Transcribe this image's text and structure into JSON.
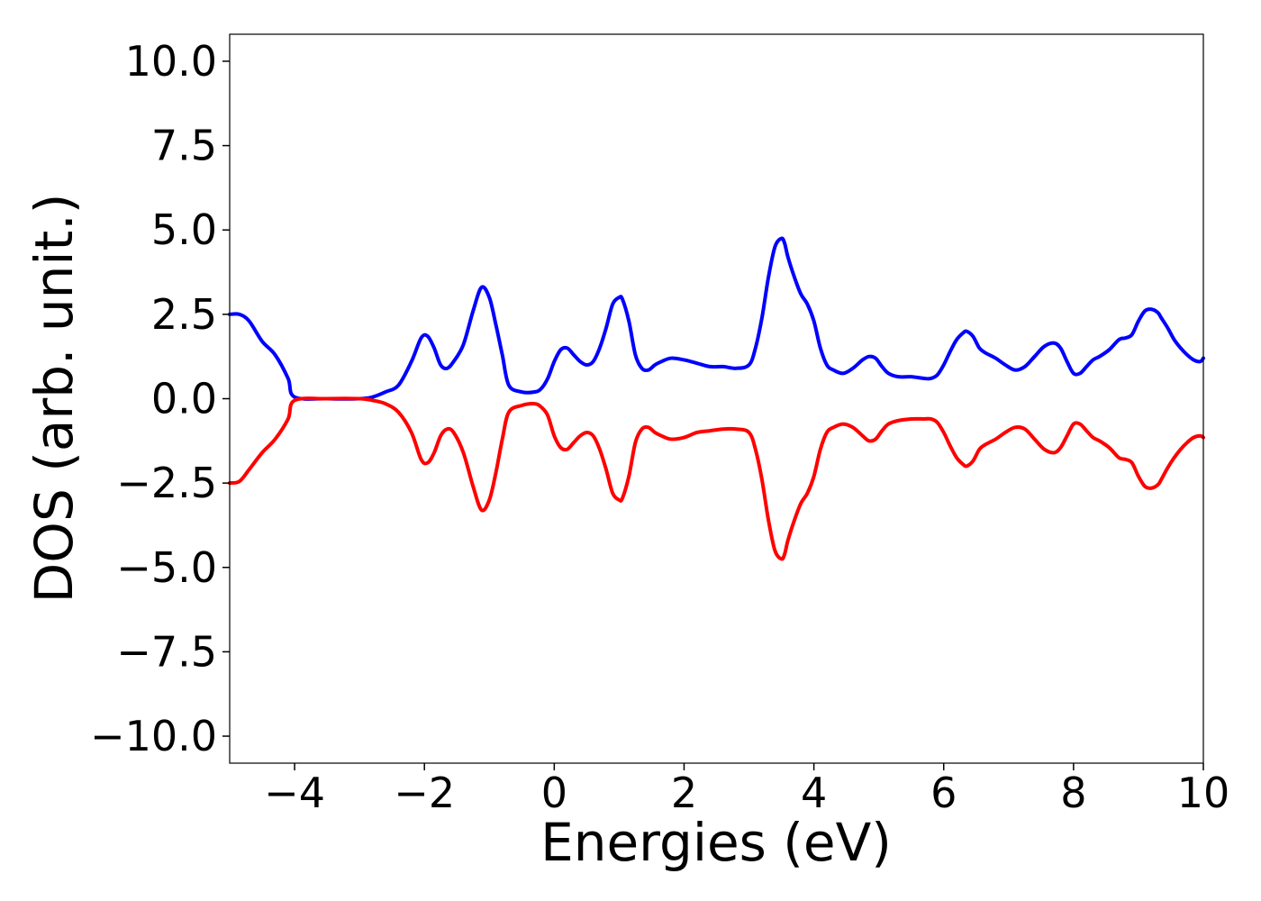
{
  "chart_data": {
    "type": "line",
    "title": "",
    "xlabel": "Energies (eV)",
    "ylabel": "DOS (arb. unit.)",
    "xlim": [
      -5,
      10
    ],
    "ylim": [
      -10.8,
      10.8
    ],
    "grid": false,
    "legend": "none",
    "xticks": [
      -4,
      -2,
      0,
      2,
      4,
      6,
      8,
      10
    ],
    "xtick_labels": [
      "−4",
      "−2",
      "0",
      "2",
      "4",
      "6",
      "8",
      "10"
    ],
    "yticks": [
      10,
      7.5,
      5,
      2.5,
      0,
      -2.5,
      -5,
      -7.5,
      -10
    ],
    "ytick_labels": [
      "10.0",
      "7.5",
      "5.0",
      "2.5",
      "0.0",
      "−2.5",
      "−5.0",
      "−7.5",
      "−10.0"
    ],
    "series": [
      {
        "color": "#0000ff",
        "x": [
          -5.0,
          -4.85,
          -4.7,
          -4.5,
          -4.3,
          -4.1,
          -4.0,
          -3.5,
          -3.0,
          -2.8,
          -2.6,
          -2.4,
          -2.2,
          -2.05,
          -1.95,
          -1.85,
          -1.75,
          -1.65,
          -1.55,
          -1.4,
          -1.25,
          -1.12,
          -1.0,
          -0.9,
          -0.8,
          -0.7,
          -0.5,
          -0.3,
          -0.2,
          -0.1,
          0.0,
          0.1,
          0.2,
          0.3,
          0.4,
          0.5,
          0.6,
          0.7,
          0.8,
          0.9,
          1.0,
          1.05,
          1.15,
          1.25,
          1.35,
          1.45,
          1.55,
          1.65,
          1.8,
          2.0,
          2.2,
          2.4,
          2.6,
          2.8,
          3.0,
          3.1,
          3.2,
          3.3,
          3.4,
          3.5,
          3.55,
          3.6,
          3.7,
          3.8,
          3.9,
          4.0,
          4.1,
          4.2,
          4.3,
          4.45,
          4.6,
          4.75,
          4.85,
          4.95,
          5.05,
          5.15,
          5.3,
          5.5,
          5.7,
          5.8,
          5.9,
          6.0,
          6.1,
          6.2,
          6.3,
          6.35,
          6.45,
          6.55,
          6.65,
          6.8,
          6.95,
          7.1,
          7.25,
          7.4,
          7.55,
          7.7,
          7.8,
          7.9,
          8.0,
          8.1,
          8.2,
          8.3,
          8.4,
          8.55,
          8.7,
          8.8,
          8.9,
          9.0,
          9.1,
          9.2,
          9.3,
          9.35,
          9.45,
          9.55,
          9.65,
          9.75,
          9.85,
          9.95,
          10.0
        ],
        "y": [
          2.5,
          2.5,
          2.3,
          1.7,
          1.3,
          0.6,
          0.05,
          0.0,
          0.0,
          0.05,
          0.2,
          0.4,
          1.1,
          1.8,
          1.85,
          1.5,
          1.0,
          0.9,
          1.1,
          1.6,
          2.6,
          3.3,
          3.0,
          2.2,
          1.3,
          0.4,
          0.2,
          0.2,
          0.3,
          0.6,
          1.1,
          1.45,
          1.5,
          1.3,
          1.1,
          1.0,
          1.1,
          1.5,
          2.1,
          2.8,
          3.0,
          2.95,
          2.3,
          1.3,
          0.9,
          0.85,
          1.0,
          1.1,
          1.2,
          1.15,
          1.05,
          0.95,
          0.95,
          0.9,
          1.0,
          1.5,
          2.4,
          3.6,
          4.5,
          4.75,
          4.6,
          4.2,
          3.6,
          3.1,
          2.8,
          2.3,
          1.5,
          1.0,
          0.85,
          0.75,
          0.9,
          1.15,
          1.25,
          1.2,
          0.95,
          0.75,
          0.65,
          0.65,
          0.6,
          0.6,
          0.7,
          1.0,
          1.4,
          1.75,
          1.95,
          2.0,
          1.85,
          1.5,
          1.35,
          1.2,
          1.0,
          0.85,
          0.95,
          1.25,
          1.55,
          1.65,
          1.5,
          1.1,
          0.75,
          0.75,
          0.95,
          1.15,
          1.25,
          1.45,
          1.75,
          1.8,
          1.9,
          2.3,
          2.6,
          2.65,
          2.55,
          2.4,
          2.1,
          1.75,
          1.5,
          1.3,
          1.15,
          1.1,
          1.2
        ]
      },
      {
        "color": "#ff0000",
        "x": [
          -5.0,
          -4.85,
          -4.7,
          -4.5,
          -4.3,
          -4.1,
          -4.0,
          -3.5,
          -3.0,
          -2.8,
          -2.6,
          -2.4,
          -2.2,
          -2.05,
          -1.95,
          -1.85,
          -1.75,
          -1.65,
          -1.55,
          -1.4,
          -1.25,
          -1.12,
          -1.0,
          -0.9,
          -0.8,
          -0.7,
          -0.5,
          -0.3,
          -0.2,
          -0.1,
          0.0,
          0.1,
          0.2,
          0.3,
          0.4,
          0.5,
          0.6,
          0.7,
          0.8,
          0.9,
          1.0,
          1.05,
          1.15,
          1.25,
          1.35,
          1.45,
          1.55,
          1.65,
          1.8,
          2.0,
          2.2,
          2.4,
          2.6,
          2.8,
          3.0,
          3.1,
          3.2,
          3.3,
          3.4,
          3.5,
          3.55,
          3.6,
          3.7,
          3.8,
          3.9,
          4.0,
          4.1,
          4.2,
          4.3,
          4.45,
          4.6,
          4.75,
          4.85,
          4.95,
          5.05,
          5.15,
          5.3,
          5.5,
          5.7,
          5.8,
          5.9,
          6.0,
          6.1,
          6.2,
          6.3,
          6.35,
          6.45,
          6.55,
          6.65,
          6.8,
          6.95,
          7.1,
          7.25,
          7.4,
          7.55,
          7.7,
          7.8,
          7.9,
          8.0,
          8.1,
          8.2,
          8.3,
          8.4,
          8.55,
          8.7,
          8.8,
          8.9,
          9.0,
          9.1,
          9.2,
          9.3,
          9.35,
          9.45,
          9.55,
          9.65,
          9.75,
          9.85,
          9.95,
          10.0
        ],
        "y": [
          -2.5,
          -2.45,
          -2.1,
          -1.6,
          -1.2,
          -0.6,
          -0.05,
          0.0,
          0.0,
          -0.05,
          -0.15,
          -0.4,
          -1.0,
          -1.8,
          -1.9,
          -1.6,
          -1.1,
          -0.9,
          -1.0,
          -1.6,
          -2.6,
          -3.3,
          -3.0,
          -2.2,
          -1.2,
          -0.4,
          -0.2,
          -0.15,
          -0.25,
          -0.5,
          -1.1,
          -1.45,
          -1.5,
          -1.3,
          -1.1,
          -1.0,
          -1.1,
          -1.5,
          -2.1,
          -2.8,
          -3.0,
          -2.95,
          -2.3,
          -1.3,
          -0.9,
          -0.85,
          -1.0,
          -1.1,
          -1.2,
          -1.15,
          -1.0,
          -0.95,
          -0.9,
          -0.9,
          -1.0,
          -1.5,
          -2.4,
          -3.6,
          -4.5,
          -4.75,
          -4.6,
          -4.2,
          -3.6,
          -3.1,
          -2.8,
          -2.3,
          -1.5,
          -1.0,
          -0.85,
          -0.75,
          -0.85,
          -1.1,
          -1.25,
          -1.2,
          -0.95,
          -0.75,
          -0.65,
          -0.6,
          -0.6,
          -0.6,
          -0.7,
          -1.0,
          -1.4,
          -1.75,
          -1.95,
          -2.0,
          -1.85,
          -1.5,
          -1.35,
          -1.2,
          -1.0,
          -0.85,
          -0.9,
          -1.2,
          -1.5,
          -1.6,
          -1.45,
          -1.1,
          -0.75,
          -0.75,
          -0.95,
          -1.15,
          -1.25,
          -1.45,
          -1.75,
          -1.8,
          -1.9,
          -2.3,
          -2.6,
          -2.65,
          -2.55,
          -2.4,
          -2.05,
          -1.75,
          -1.5,
          -1.3,
          -1.15,
          -1.1,
          -1.15
        ]
      }
    ]
  }
}
